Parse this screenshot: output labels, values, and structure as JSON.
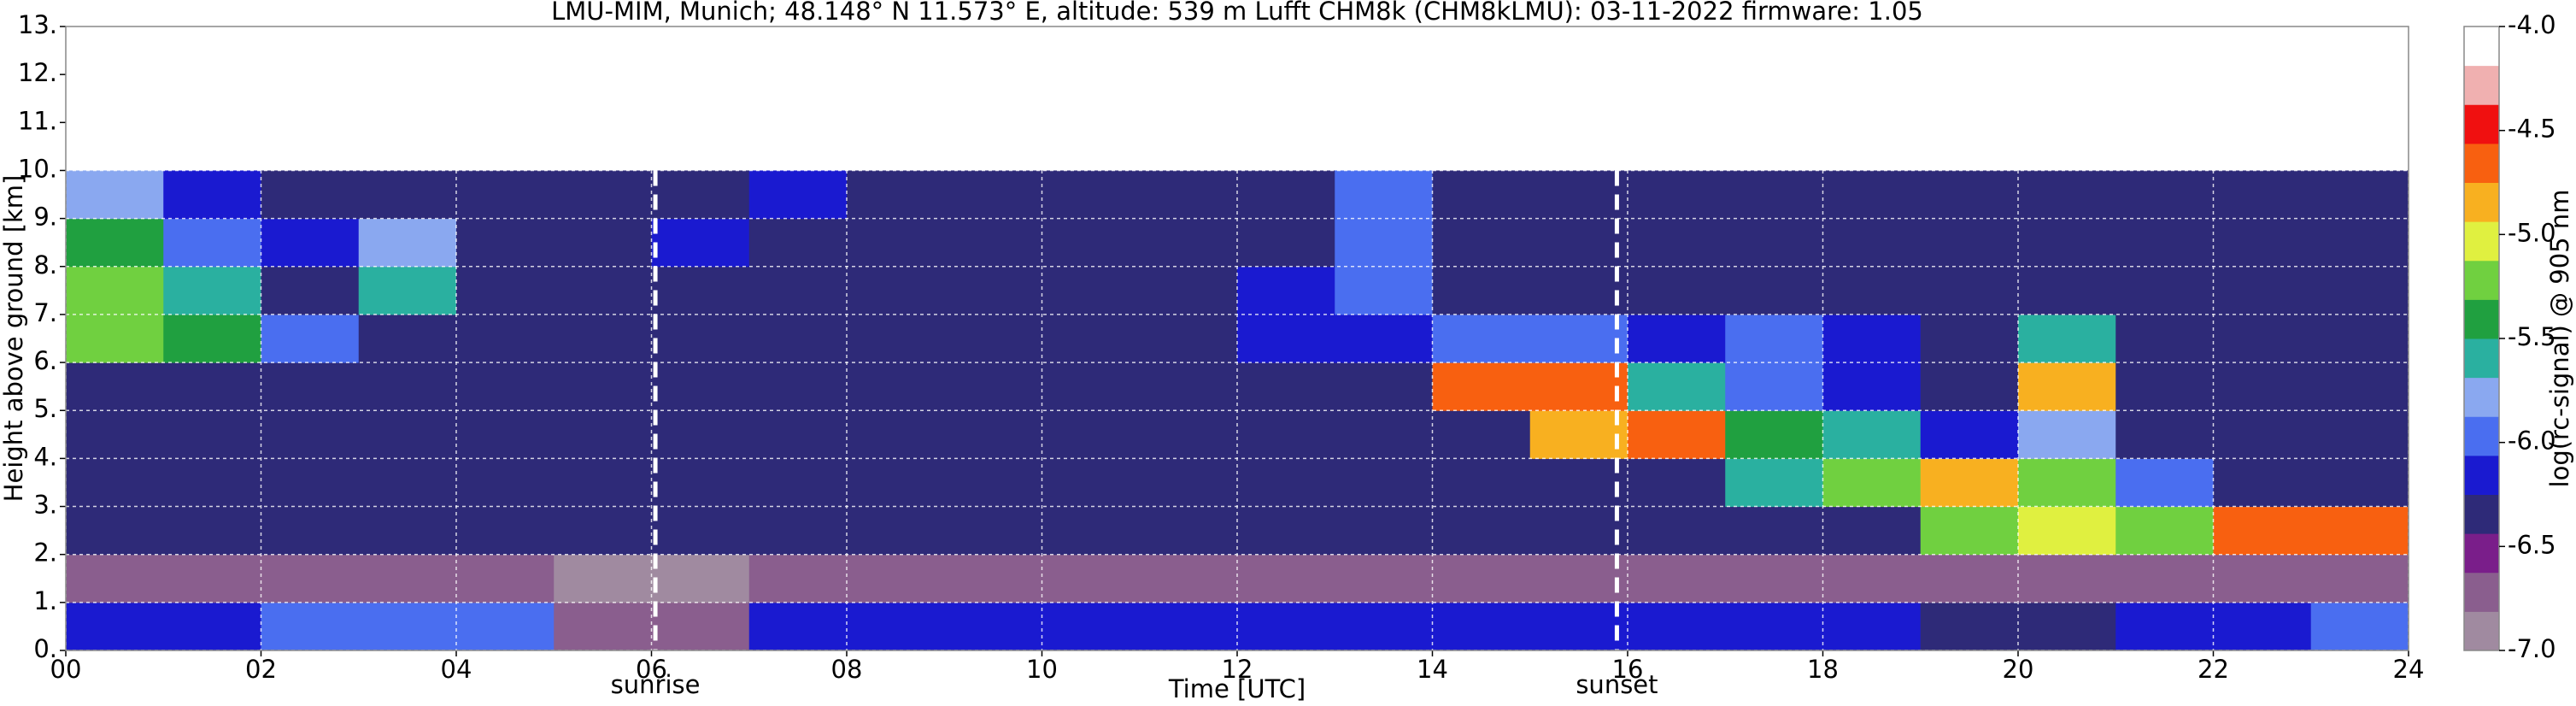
{
  "chart_data": {
    "type": "heatmap",
    "title": "LMU-MIM, Munich; 48.148° N 11.573° E, altitude: 539 m    Lufft CHM8k (CHM8kLMU): 03-11-2022    firmware: 1.05",
    "xlabel": "Time [UTC]",
    "ylabel": "Height above ground [km]",
    "colorbar_label": "log(rc-signal) @ 905 nm",
    "xlim": [
      0,
      24
    ],
    "ylim": [
      0,
      13
    ],
    "xticks": [
      {
        "value": 0,
        "label": "00"
      },
      {
        "value": 2,
        "label": "02"
      },
      {
        "value": 4,
        "label": "04"
      },
      {
        "value": 6,
        "label": "06"
      },
      {
        "value": 8,
        "label": "08"
      },
      10,
      12,
      14,
      16,
      18,
      20,
      22,
      24
    ],
    "yticks": [
      {
        "value": 0,
        "label": "0."
      },
      {
        "value": 1,
        "label": "1."
      },
      {
        "value": 2,
        "label": "2."
      },
      {
        "value": 3,
        "label": "3."
      },
      {
        "value": 4,
        "label": "4."
      },
      {
        "value": 5,
        "label": "5."
      },
      {
        "value": 6,
        "label": "6."
      },
      {
        "value": 7,
        "label": "7."
      },
      {
        "value": 8,
        "label": "8."
      },
      {
        "value": 9,
        "label": "9."
      },
      {
        "value": 10,
        "label": "10."
      },
      {
        "value": 11,
        "label": "11."
      },
      {
        "value": 12,
        "label": "12."
      },
      {
        "value": 13,
        "label": "13."
      }
    ],
    "clim": [
      -7,
      -4
    ],
    "cticks": [
      {
        "value": -4,
        "label": "-4.0"
      },
      {
        "value": -4.5,
        "label": "-4.5"
      },
      {
        "value": -5,
        "label": "-5.0"
      },
      {
        "value": -5.5,
        "label": "-5.5"
      },
      {
        "value": -6,
        "label": "-6.0"
      },
      {
        "value": -6.5,
        "label": "-6.5"
      },
      {
        "value": -7,
        "label": "-7.0"
      }
    ],
    "colors": [
      "#a08aa0",
      "#8a5e8e",
      "#7a1e8a",
      "#2e2a78",
      "#1a1ad0",
      "#4a6ef0",
      "#8aa8f0",
      "#2ab0a0",
      "#20a040",
      "#70d040",
      "#e0f040",
      "#f8b020",
      "#f86010",
      "#f01010",
      "#f0b0b0",
      "#ffffff"
    ],
    "grid": true,
    "x_bins": [
      0,
      1,
      2,
      3,
      4,
      5,
      6,
      7,
      8,
      9,
      10,
      11,
      12,
      13,
      14,
      15,
      16,
      17,
      18,
      19,
      20,
      21,
      22,
      23,
      24
    ],
    "y_bins": [
      0,
      1,
      2,
      3,
      4,
      5,
      6,
      7,
      8,
      9,
      10
    ],
    "z": [
      [
        -6.1,
        -6.1,
        -6.0,
        -5.9,
        -6.0,
        -6.8,
        -6.8,
        -6.2,
        -6.2,
        -6.2,
        -6.2,
        -6.2,
        -6.2,
        -6.2,
        -6.2,
        -6.2,
        -6.1,
        -6.2,
        -6.2,
        -6.3,
        -6.3,
        -6.2,
        -6.2,
        -6.0
      ],
      [
        -6.7,
        -6.7,
        -6.7,
        -6.7,
        -6.7,
        -6.9,
        -6.9,
        -6.7,
        -6.7,
        -6.7,
        -6.7,
        -6.7,
        -6.7,
        -6.7,
        -6.7,
        -6.7,
        -6.7,
        -6.7,
        -6.7,
        -6.7,
        -6.7,
        -6.7,
        -6.7,
        -6.7
      ],
      [
        -6.35,
        -6.35,
        -6.35,
        -6.35,
        -6.35,
        -6.35,
        -6.35,
        -6.35,
        -6.35,
        -6.35,
        -6.35,
        -6.35,
        -6.35,
        -6.35,
        -6.35,
        -6.35,
        -6.35,
        -6.35,
        -6.35,
        -5.3,
        -5.1,
        -5.3,
        -4.7,
        -4.6
      ],
      [
        -6.35,
        -6.35,
        -6.35,
        -6.35,
        -6.35,
        -6.35,
        -6.35,
        -6.35,
        -6.35,
        -6.35,
        -6.35,
        -6.35,
        -6.35,
        -6.35,
        -6.35,
        -6.35,
        -6.35,
        -5.6,
        -5.3,
        -4.8,
        -5.2,
        -6.0,
        -6.35,
        -6.35
      ],
      [
        -6.35,
        -6.35,
        -6.35,
        -6.35,
        -6.35,
        -6.35,
        -6.35,
        -6.35,
        -6.35,
        -6.35,
        -6.35,
        -6.35,
        -6.35,
        -6.35,
        -6.35,
        -4.8,
        -4.7,
        -5.4,
        -5.6,
        -6.2,
        -5.8,
        -6.35,
        -6.35,
        -6.35
      ],
      [
        -6.35,
        -6.35,
        -6.35,
        -6.35,
        -6.35,
        -6.35,
        -6.35,
        -6.35,
        -6.35,
        -6.35,
        -6.35,
        -6.35,
        -6.35,
        -6.35,
        -4.6,
        -4.7,
        -5.6,
        -5.9,
        -6.2,
        -6.35,
        -4.9,
        -6.35,
        -6.35,
        -6.35
      ],
      [
        -5.3,
        -5.4,
        -6.0,
        -6.35,
        -6.35,
        -6.35,
        -6.35,
        -6.35,
        -6.35,
        -6.35,
        -6.35,
        -6.35,
        -6.2,
        -6.1,
        -5.9,
        -6.0,
        -6.2,
        -6.0,
        -6.2,
        -6.35,
        -5.6,
        -6.35,
        -6.35,
        -6.35
      ],
      [
        -5.2,
        -5.6,
        -6.35,
        -5.6,
        -6.35,
        -6.35,
        -6.35,
        -6.35,
        -6.35,
        -6.35,
        -6.35,
        -6.35,
        -6.1,
        -6.0,
        -6.35,
        -6.35,
        -6.35,
        -6.35,
        -6.35,
        -6.35,
        -6.35,
        -6.35,
        -6.35,
        -6.35
      ],
      [
        -5.5,
        -5.9,
        -6.1,
        -5.7,
        -6.35,
        -6.35,
        -6.2,
        -6.35,
        -6.35,
        -6.35,
        -6.35,
        -6.35,
        -6.35,
        -5.9,
        -6.35,
        -6.35,
        -6.35,
        -6.35,
        -6.35,
        -6.35,
        -6.35,
        -6.35,
        -6.35,
        -6.35
      ],
      [
        -5.8,
        -6.1,
        -6.35,
        -6.35,
        -6.35,
        -6.35,
        -6.35,
        -6.2,
        -6.35,
        -6.35,
        -6.35,
        -6.35,
        -6.35,
        -6.0,
        -6.35,
        -6.35,
        -6.35,
        -6.35,
        -6.35,
        -6.35,
        -6.35,
        -6.35,
        -6.35,
        -6.35
      ]
    ],
    "annotations": [
      {
        "text": "sunrise",
        "x": 6.04
      },
      {
        "text": "sunset",
        "x": 15.89
      }
    ]
  }
}
